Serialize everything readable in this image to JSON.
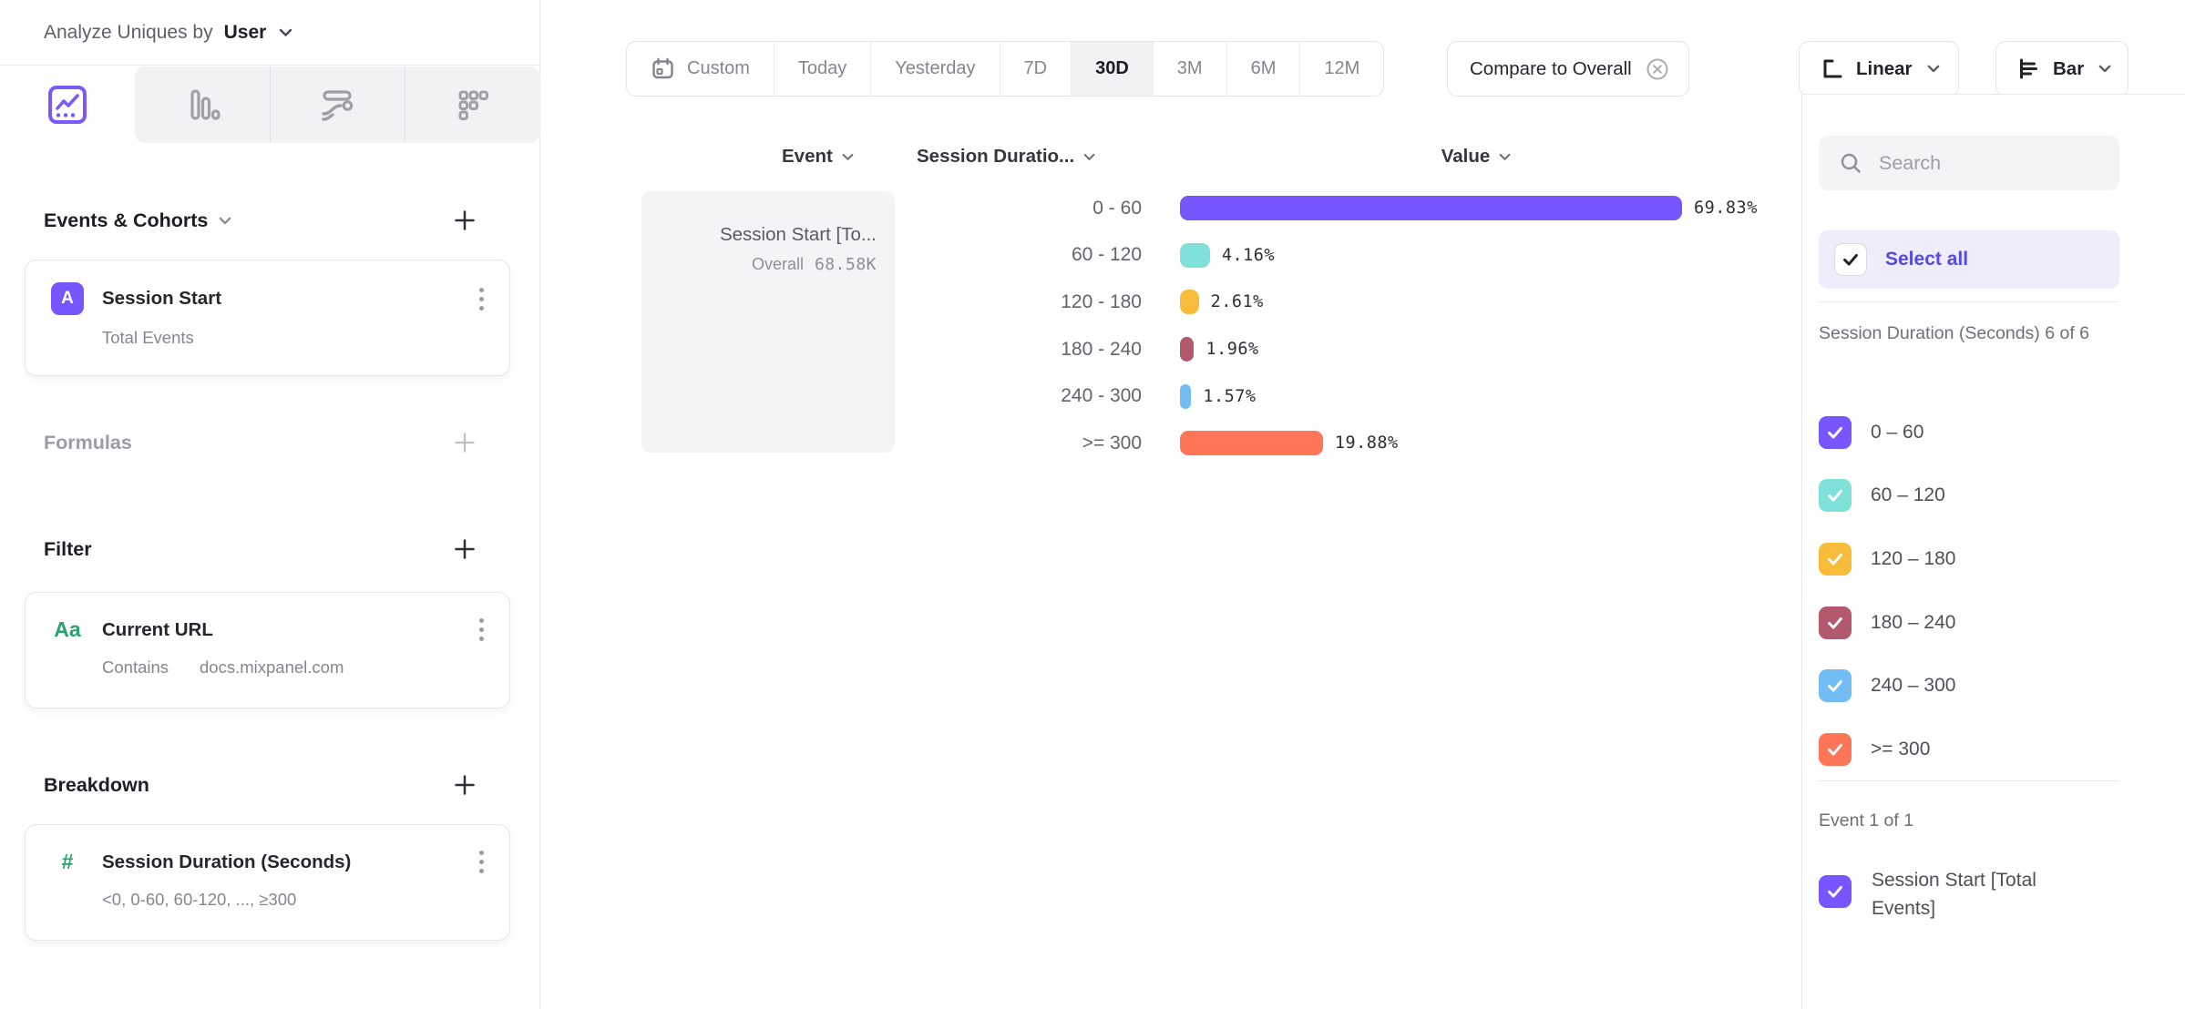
{
  "accent": "#7856FF",
  "left_sidebar": {
    "analyze_label": "Analyze Uniques by",
    "analyze_value": "User",
    "chart_type_tabs": [
      "insights-line",
      "bar-chart",
      "flow",
      "metrics-grid"
    ],
    "selected_tab": "insights-line",
    "events_section": {
      "title": "Events & Cohorts",
      "card": {
        "badge": "A",
        "title": "Session Start",
        "subtitle": "Total Events"
      }
    },
    "formulas_section": {
      "title": "Formulas"
    },
    "filter_section": {
      "title": "Filter",
      "card": {
        "badge": "Aa",
        "title": "Current URL",
        "operator": "Contains",
        "value": "docs.mixpanel.com"
      }
    },
    "breakdown_section": {
      "title": "Breakdown",
      "card": {
        "badge": "#",
        "title": "Session Duration (Seconds)",
        "subtitle": "<0, 0-60, 60-120, ..., ≥300"
      }
    }
  },
  "toolbar": {
    "date_ranges": [
      "Custom",
      "Today",
      "Yesterday",
      "7D",
      "30D",
      "3M",
      "6M",
      "12M"
    ],
    "active_range": "30D",
    "compare_label": "Compare to Overall",
    "scale_label": "Linear",
    "chart_type_label": "Bar"
  },
  "chart": {
    "columns": [
      "Event",
      "Session Duratio...",
      "Value"
    ],
    "event_cell": {
      "title": "Session Start [To...",
      "overall_label": "Overall",
      "overall_value": "68.58K"
    }
  },
  "chart_data": {
    "type": "bar",
    "orientation": "horizontal",
    "title": "Session Start [Total Events] by Session Duration (Seconds), last 30 days",
    "categories": [
      "0 - 60",
      "60 - 120",
      "120 - 180",
      "180 - 240",
      "240 - 300",
      ">= 300"
    ],
    "values": [
      69.83,
      4.16,
      2.61,
      1.96,
      1.57,
      19.88
    ],
    "value_labels": [
      "69.83%",
      "4.16%",
      "2.61%",
      "1.96%",
      "1.57%",
      "19.88%"
    ],
    "colors": [
      "#7856FF",
      "#80E1D9",
      "#F8BC3B",
      "#B2596E",
      "#72BEF4",
      "#FF7557"
    ],
    "series_name": "Session Start [Total Events]",
    "overall_value": "68.58K",
    "xlabel": "Value",
    "ylabel": "Session Duration (Seconds)",
    "xlim": [
      0,
      72.6
    ],
    "grid": false,
    "legend_position": "right-panel"
  },
  "right_panel": {
    "search_placeholder": "Search",
    "select_all_label": "Select all",
    "breakdown_group": {
      "label": "Session Duration (Seconds) 6 of 6",
      "items": [
        {
          "label": "0 – 60",
          "color": "#7856FF",
          "checked": true
        },
        {
          "label": "60 – 120",
          "color": "#80E1D9",
          "checked": true
        },
        {
          "label": "120 – 180",
          "color": "#F8BC3B",
          "checked": true
        },
        {
          "label": "180 – 240",
          "color": "#B2596E",
          "checked": true
        },
        {
          "label": "240 – 300",
          "color": "#72BEF4",
          "checked": true
        },
        {
          "label": ">= 300",
          "color": "#FF7557",
          "checked": true
        }
      ]
    },
    "event_group": {
      "label": "Event 1 of 1",
      "items": [
        {
          "label": "Session Start [Total Events]",
          "color": "#7856FF",
          "checked": true
        }
      ]
    }
  }
}
